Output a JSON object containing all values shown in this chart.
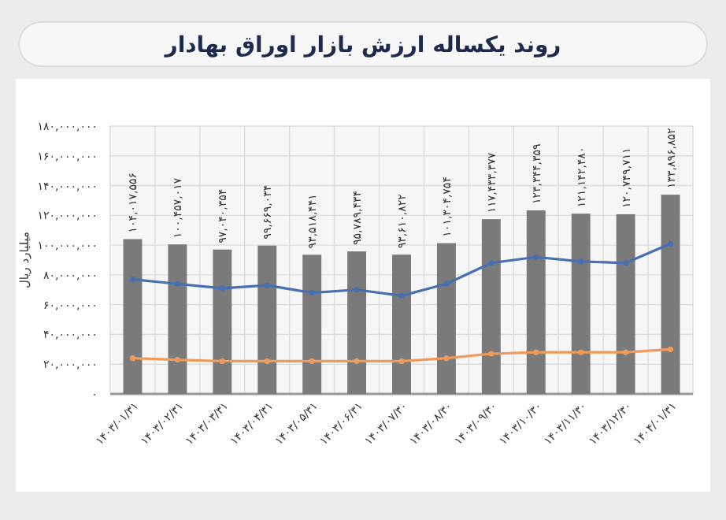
{
  "chart_data": {
    "type": "bar",
    "title": "روند یکساله ارزش بازار اوراق بهادار",
    "ylabel": "میلیارد ریال",
    "categories": [
      "۱۴۰۳/۰۱/۳۱",
      "۱۴۰۳/۰۲/۳۱",
      "۱۴۰۳/۰۳/۳۱",
      "۱۴۰۳/۰۴/۳۱",
      "۱۴۰۳/۰۵/۳۱",
      "۱۴۰۳/۰۶/۳۱",
      "۱۴۰۳/۰۷/۳۰",
      "۱۴۰۳/۰۸/۳۰",
      "۱۴۰۳/۰۹/۳۰",
      "۱۴۰۳/۱۰/۳۰",
      "۱۴۰۳/۱۱/۳۰",
      "۱۴۰۳/۱۲/۳۰",
      "۱۴۰۴/۰۱/۳۱"
    ],
    "series": [
      {
        "color": "#7a7a7a",
        "values": [
          104017556,
          100457017,
          97040354,
          99669034,
          93518441,
          95789434,
          93610822,
          101304754,
          117433377,
          123344359,
          121142480,
          120749711,
          133896852
        ],
        "value_labels": [
          "۱۰۴,۰۱۷,۵۵۶",
          "۱۰۰,۴۵۷,۰۱۷",
          "۹۷,۰۴۰,۳۵۴",
          "۹۹,۶۶۹,۰۳۴",
          "۹۳,۵۱۸,۴۴۱",
          "۹۵,۷۸۹,۴۳۴",
          "۹۳,۶۱۰,۸۲۲",
          "۱۰۱,۳۰۴,۷۵۴",
          "۱۱۷,۴۳۳,۳۷۷",
          "۱۲۳,۳۴۴,۳۵۹",
          "۱۲۱,۱۴۲,۴۸۰",
          "۱۲۰,۷۴۹,۷۱۱",
          "۱۳۳,۸۹۶,۸۵۲"
        ]
      },
      {
        "type": "line",
        "color": "#4a6fb0",
        "values": [
          77000000,
          74000000,
          71000000,
          73000000,
          68000000,
          70000000,
          66000000,
          74000000,
          88000000,
          92000000,
          89000000,
          88000000,
          101000000
        ]
      },
      {
        "type": "line",
        "color": "#ee9a5a",
        "values": [
          24000000,
          23000000,
          22000000,
          22000000,
          22000000,
          22000000,
          22000000,
          24000000,
          27000000,
          28000000,
          28000000,
          28000000,
          30000000
        ]
      }
    ],
    "ylim": [
      0,
      180000000
    ],
    "yticks": [
      {
        "value": 0,
        "label": "۰"
      },
      {
        "value": 20000000,
        "label": "۲۰,۰۰۰,۰۰۰"
      },
      {
        "value": 40000000,
        "label": "۴۰,۰۰۰,۰۰۰"
      },
      {
        "value": 60000000,
        "label": "۶۰,۰۰۰,۰۰۰"
      },
      {
        "value": 80000000,
        "label": "۸۰,۰۰۰,۰۰۰"
      },
      {
        "value": 100000000,
        "label": "۱۰۰,۰۰۰,۰۰۰"
      },
      {
        "value": 120000000,
        "label": "۱۲۰,۰۰۰,۰۰۰"
      },
      {
        "value": 140000000,
        "label": "۱۴۰,۰۰۰,۰۰۰"
      },
      {
        "value": 160000000,
        "label": "۱۶۰,۰۰۰,۰۰۰"
      },
      {
        "value": 180000000,
        "label": "۱۸۰,۰۰۰,۰۰۰"
      }
    ],
    "grid": true,
    "marker": "circle",
    "line_style": "solid"
  }
}
